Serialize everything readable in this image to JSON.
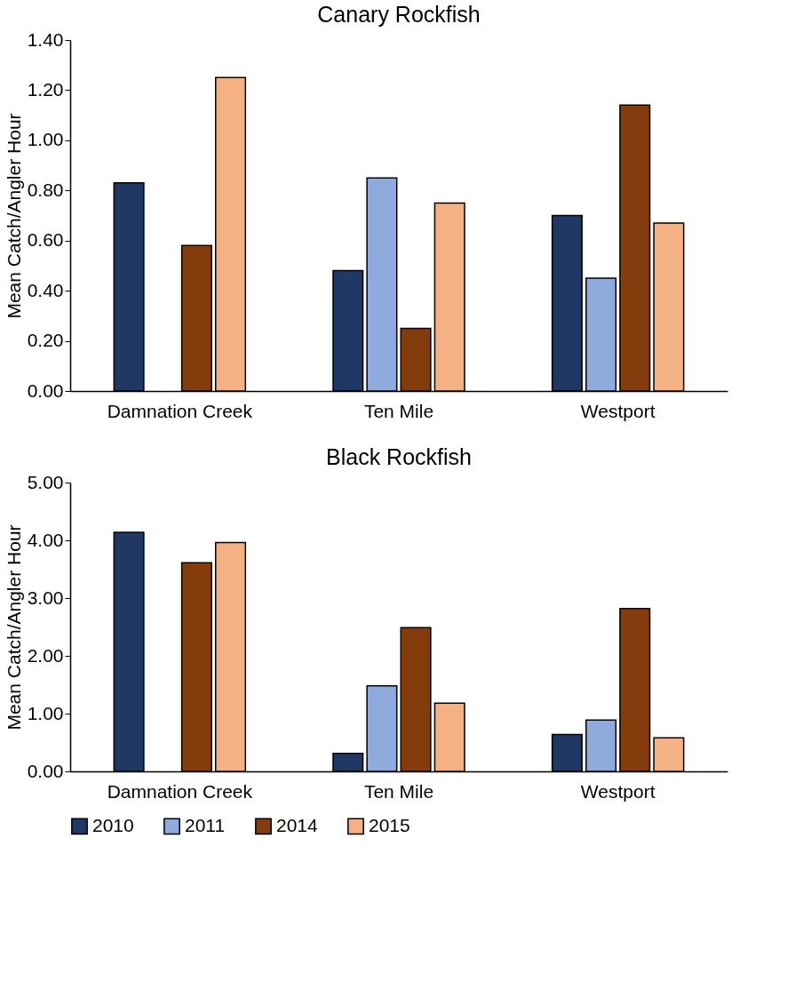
{
  "chart_data": [
    {
      "type": "bar",
      "title": "Canary Rockfish",
      "ylabel": "Mean Catch/Angler Hour",
      "categories": [
        "Damnation Creek",
        "Ten Mile",
        "Westport"
      ],
      "series": [
        {
          "name": "2010",
          "color": "#203864",
          "values": [
            0.83,
            0.48,
            0.7
          ]
        },
        {
          "name": "2011",
          "color": "#8faadc",
          "values": [
            null,
            0.85,
            0.45
          ]
        },
        {
          "name": "2014",
          "color": "#843c0c",
          "values": [
            0.58,
            0.25,
            1.14
          ]
        },
        {
          "name": "2015",
          "color": "#f4b183",
          "values": [
            1.25,
            0.75,
            0.67
          ]
        }
      ],
      "ylim": [
        0,
        1.4
      ],
      "yticks": [
        {
          "value": 0,
          "label": "0.00"
        },
        {
          "value": 0.2,
          "label": "0.20"
        },
        {
          "value": 0.4,
          "label": "0.40"
        },
        {
          "value": 0.6,
          "label": "0.60"
        },
        {
          "value": 0.8,
          "label": "0.80"
        },
        {
          "value": 1.0,
          "label": "1.00"
        },
        {
          "value": 1.2,
          "label": "1.20"
        },
        {
          "value": 1.4,
          "label": "1.40"
        }
      ],
      "grid": false,
      "legend": "bottom"
    },
    {
      "type": "bar",
      "title": "Black Rockfish",
      "ylabel": "Mean Catch/Angler Hour",
      "categories": [
        "Damnation Creek",
        "Ten Mile",
        "Westport"
      ],
      "series": [
        {
          "name": "2010",
          "color": "#203864",
          "values": [
            4.14,
            0.31,
            0.64
          ]
        },
        {
          "name": "2011",
          "color": "#8faadc",
          "values": [
            null,
            1.48,
            0.89
          ]
        },
        {
          "name": "2014",
          "color": "#843c0c",
          "values": [
            3.61,
            2.49,
            2.82
          ]
        },
        {
          "name": "2015",
          "color": "#f4b183",
          "values": [
            3.96,
            1.18,
            0.58
          ]
        }
      ],
      "ylim": [
        0,
        5
      ],
      "yticks": [
        {
          "value": 0,
          "label": "0.00"
        },
        {
          "value": 1,
          "label": "1.00"
        },
        {
          "value": 2,
          "label": "2.00"
        },
        {
          "value": 3,
          "label": "3.00"
        },
        {
          "value": 4,
          "label": "4.00"
        },
        {
          "value": 5,
          "label": "5.00"
        }
      ],
      "grid": false,
      "legend": "bottom"
    }
  ]
}
